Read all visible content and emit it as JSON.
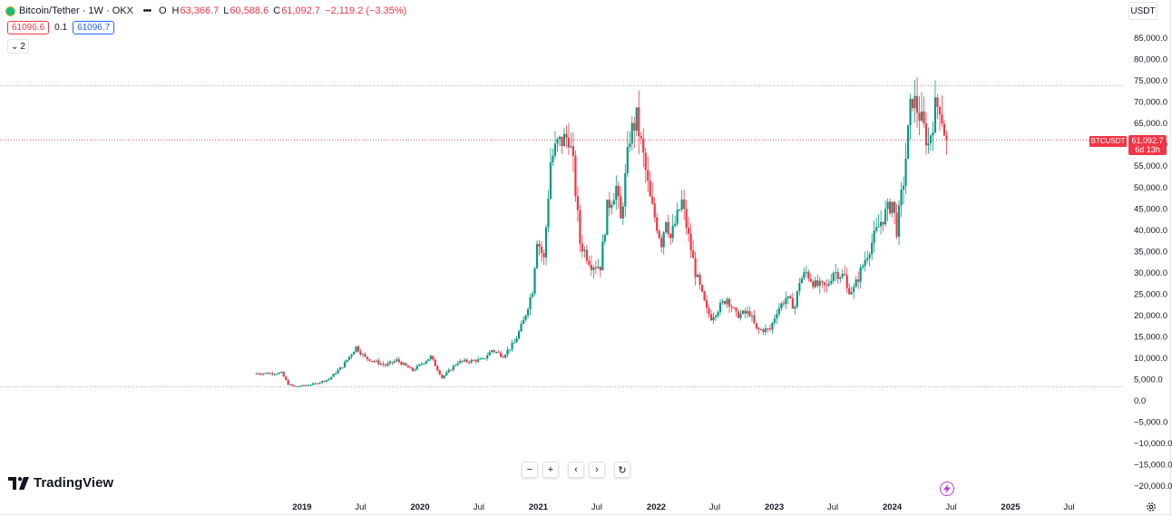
{
  "header": {
    "title": "Bitcoin/Tether · 1W · OKX",
    "more_icon": "dots-horizontal-icon",
    "open_label": "O",
    "open_value": "",
    "high_label": "H",
    "high_value": "63,366.7",
    "low_label": "L",
    "low_value": "60,588.6",
    "close_label": "C",
    "close_value": "61,092.7",
    "change_value": "−2,119.2 (−3.35%)",
    "bid": "61096.6",
    "spread": "0.1",
    "ask": "61096.7",
    "indicators_count": "2",
    "currency": "USDT"
  },
  "colors": {
    "up": "#089981",
    "down": "#f23645",
    "last_price_line": "#f23645",
    "hline": "#8c8f99",
    "axis_text": "#131722"
  },
  "price_badge": {
    "symbol": "BTCUSDT",
    "price": "61,092.7",
    "countdown": "6d 13h"
  },
  "bottom_toolbar": {
    "zoom_out_icon": "minus-icon",
    "zoom_in_icon": "plus-icon",
    "scroll_left_icon": "chevron-left-icon",
    "scroll_right_icon": "chevron-right-icon",
    "reset_icon": "reset-icon"
  },
  "branding": {
    "logo_text": "TradingView"
  },
  "chart_data": {
    "type": "candlestick",
    "symbol": "BTCUSDT",
    "interval": "1W",
    "y_axis": {
      "ticks": [
        85000,
        80000,
        75000,
        70000,
        65000,
        60000,
        55000,
        50000,
        45000,
        40000,
        35000,
        30000,
        25000,
        20000,
        15000,
        10000,
        5000,
        0,
        -5000,
        -10000,
        -15000,
        -20000
      ],
      "tick_labels": [
        "85,000.0",
        "80,000.0",
        "75,000.0",
        "70,000.0",
        "65,000.0",
        "60,000.0",
        "55,000.0",
        "50,000.0",
        "45,000.0",
        "40,000.0",
        "35,000.0",
        "30,000.0",
        "25,000.0",
        "20,000.0",
        "15,000.0",
        "10,000.0",
        "5,000.0",
        "0.0",
        "−5,000.0",
        "−10,000.0",
        "−15,000.0",
        "−20,000.0"
      ],
      "range": [
        -22000,
        88000
      ]
    },
    "x_axis": {
      "ticks": [
        "2019-01-01",
        "2019-07-01",
        "2020-01-01",
        "2020-07-01",
        "2021-01-01",
        "2021-07-01",
        "2022-01-01",
        "2022-07-01",
        "2023-01-01",
        "2023-07-01",
        "2024-01-01",
        "2024-07-01",
        "2025-01-01",
        "2025-07-01"
      ],
      "tick_labels": [
        "2019",
        "Jul",
        "2020",
        "Jul",
        "2021",
        "Jul",
        "2022",
        "Jul",
        "2023",
        "Jul",
        "2024",
        "Jul",
        "2025",
        "Jul"
      ],
      "range": [
        "2018-02-01",
        "2025-10-01"
      ]
    },
    "horizontal_lines": [
      73800,
      3200
    ],
    "last_price": 61092.7,
    "anchors": [
      [
        "2018-08-13",
        6300
      ],
      [
        "2018-11-05",
        6400
      ],
      [
        "2018-11-26",
        3800
      ],
      [
        "2018-12-17",
        3200
      ],
      [
        "2019-02-18",
        3900
      ],
      [
        "2019-04-01",
        5000
      ],
      [
        "2019-05-13",
        8000
      ],
      [
        "2019-06-24",
        12500
      ],
      [
        "2019-07-22",
        10000
      ],
      [
        "2019-09-23",
        8200
      ],
      [
        "2019-10-28",
        9400
      ],
      [
        "2019-12-16",
        7000
      ],
      [
        "2020-02-10",
        10200
      ],
      [
        "2020-03-16",
        5300
      ],
      [
        "2020-05-04",
        9000
      ],
      [
        "2020-07-20",
        9500
      ],
      [
        "2020-08-17",
        11800
      ],
      [
        "2020-09-21",
        10500
      ],
      [
        "2020-10-26",
        13500
      ],
      [
        "2020-11-23",
        18500
      ],
      [
        "2020-12-21",
        26000
      ],
      [
        "2021-01-04",
        38000
      ],
      [
        "2021-01-25",
        33000
      ],
      [
        "2021-02-15",
        56000
      ],
      [
        "2021-03-08",
        60000
      ],
      [
        "2021-04-12",
        62000
      ],
      [
        "2021-04-26",
        55000
      ],
      [
        "2021-05-17",
        37000
      ],
      [
        "2021-06-21",
        32000
      ],
      [
        "2021-07-19",
        31500
      ],
      [
        "2021-08-09",
        45000
      ],
      [
        "2021-09-06",
        50000
      ],
      [
        "2021-09-20",
        42000
      ],
      [
        "2021-10-18",
        62000
      ],
      [
        "2021-11-08",
        66000
      ],
      [
        "2021-11-29",
        57000
      ],
      [
        "2021-12-20",
        47000
      ],
      [
        "2022-01-24",
        37000
      ],
      [
        "2022-02-07",
        43000
      ],
      [
        "2022-02-21",
        38000
      ],
      [
        "2022-03-28",
        46500
      ],
      [
        "2022-05-09",
        30000
      ],
      [
        "2022-06-13",
        21000
      ],
      [
        "2022-06-27",
        19500
      ],
      [
        "2022-08-15",
        24000
      ],
      [
        "2022-09-12",
        20000
      ],
      [
        "2022-10-24",
        20500
      ],
      [
        "2022-11-14",
        16500
      ],
      [
        "2022-12-26",
        16600
      ],
      [
        "2023-01-16",
        21000
      ],
      [
        "2023-02-13",
        24000
      ],
      [
        "2023-03-13",
        22000
      ],
      [
        "2023-03-27",
        28000
      ],
      [
        "2023-04-17",
        30000
      ],
      [
        "2023-05-15",
        27000
      ],
      [
        "2023-06-19",
        26500
      ],
      [
        "2023-07-10",
        30300
      ],
      [
        "2023-08-14",
        29000
      ],
      [
        "2023-08-21",
        26000
      ],
      [
        "2023-09-11",
        26000
      ],
      [
        "2023-10-23",
        34500
      ],
      [
        "2023-12-04",
        42000
      ],
      [
        "2024-01-08",
        46500
      ],
      [
        "2024-01-22",
        40000
      ],
      [
        "2024-02-12",
        51500
      ],
      [
        "2024-03-04",
        68000
      ],
      [
        "2024-03-11",
        71000
      ],
      [
        "2024-04-01",
        67000
      ],
      [
        "2024-04-29",
        60000
      ],
      [
        "2024-05-20",
        68500
      ],
      [
        "2024-06-03",
        69500
      ],
      [
        "2024-06-17",
        63200
      ],
      [
        "2024-06-24",
        61092.7
      ]
    ]
  }
}
